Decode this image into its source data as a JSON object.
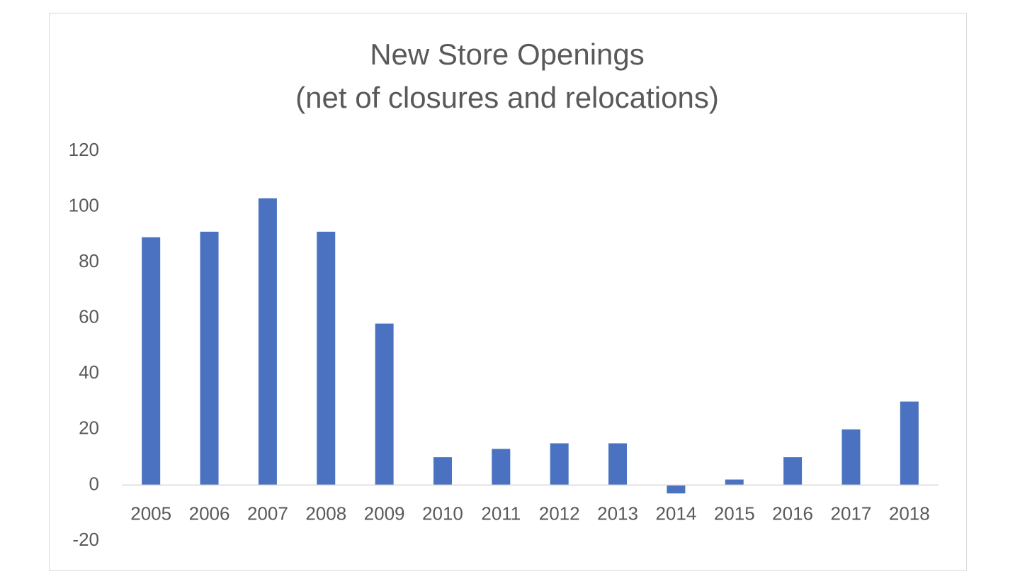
{
  "chart_data": {
    "type": "bar",
    "title": "New Store Openings",
    "subtitle": "(net of closures and relocations)",
    "categories": [
      "2005",
      "2006",
      "2007",
      "2008",
      "2009",
      "2010",
      "2011",
      "2012",
      "2013",
      "2014",
      "2015",
      "2016",
      "2017",
      "2018"
    ],
    "values": [
      89,
      91,
      103,
      91,
      58,
      10,
      13,
      15,
      15,
      -3,
      2,
      10,
      20,
      30
    ],
    "color": "#4a72c0",
    "ylim": [
      -20,
      120
    ],
    "yticks": [
      -20,
      0,
      20,
      40,
      60,
      80,
      100,
      120
    ],
    "grid": false
  }
}
